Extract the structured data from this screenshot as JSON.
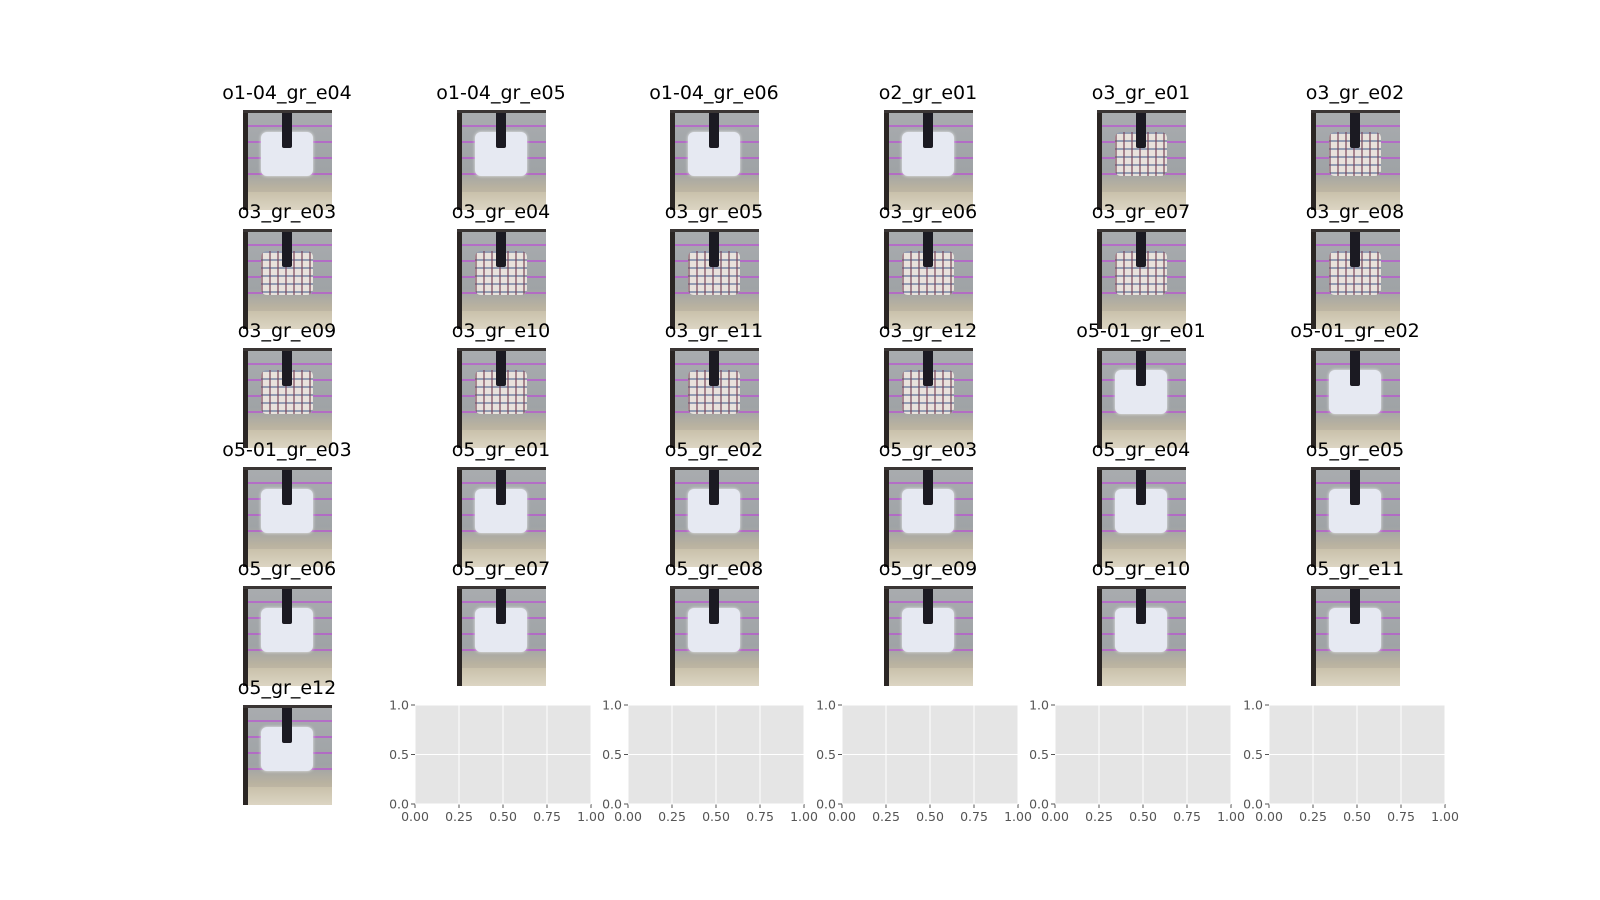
{
  "figure": {
    "panels": [
      {
        "title": "o1-04_gr_e04",
        "garment": "white"
      },
      {
        "title": "o1-04_gr_e05",
        "garment": "white"
      },
      {
        "title": "o1-04_gr_e06",
        "garment": "white"
      },
      {
        "title": "o2_gr_e01",
        "garment": "white"
      },
      {
        "title": "o3_gr_e01",
        "garment": "plaid"
      },
      {
        "title": "o3_gr_e02",
        "garment": "plaid"
      },
      {
        "title": "o3_gr_e03",
        "garment": "plaid"
      },
      {
        "title": "o3_gr_e04",
        "garment": "plaid"
      },
      {
        "title": "o3_gr_e05",
        "garment": "plaid"
      },
      {
        "title": "o3_gr_e06",
        "garment": "plaid"
      },
      {
        "title": "o3_gr_e07",
        "garment": "plaid"
      },
      {
        "title": "o3_gr_e08",
        "garment": "plaid"
      },
      {
        "title": "o3_gr_e09",
        "garment": "plaid"
      },
      {
        "title": "o3_gr_e10",
        "garment": "plaid"
      },
      {
        "title": "o3_gr_e11",
        "garment": "plaid"
      },
      {
        "title": "o3_gr_e12",
        "garment": "plaid"
      },
      {
        "title": "o5-01_gr_e01",
        "garment": "white"
      },
      {
        "title": "o5-01_gr_e02",
        "garment": "white"
      },
      {
        "title": "o5-01_gr_e03",
        "garment": "white"
      },
      {
        "title": "o5_gr_e01",
        "garment": "white"
      },
      {
        "title": "o5_gr_e02",
        "garment": "white"
      },
      {
        "title": "o5_gr_e03",
        "garment": "white"
      },
      {
        "title": "o5_gr_e04",
        "garment": "white"
      },
      {
        "title": "o5_gr_e05",
        "garment": "white"
      },
      {
        "title": "o5_gr_e06",
        "garment": "white"
      },
      {
        "title": "o5_gr_e07",
        "garment": "white"
      },
      {
        "title": "o5_gr_e08",
        "garment": "white"
      },
      {
        "title": "o5_gr_e09",
        "garment": "white"
      },
      {
        "title": "o5_gr_e10",
        "garment": "white"
      },
      {
        "title": "o5_gr_e11",
        "garment": "white"
      },
      {
        "title": "o5_gr_e12",
        "garment": "white"
      }
    ],
    "colors": {
      "axes_bg": "#e5e5e5",
      "grid": "#ffffff",
      "tick_text": "#555555",
      "tick_mark": "#555555"
    }
  },
  "chart_data": [
    {
      "type": "scatter",
      "title": "",
      "series": [],
      "xlim": [
        0,
        1
      ],
      "ylim": [
        0,
        1
      ],
      "xticks": [
        "0.00",
        "0.25",
        "0.50",
        "0.75",
        "1.00"
      ],
      "yticks": [
        "0.0",
        "0.5",
        "1.0"
      ],
      "grid": true
    },
    {
      "type": "scatter",
      "title": "",
      "series": [],
      "xlim": [
        0,
        1
      ],
      "ylim": [
        0,
        1
      ],
      "xticks": [
        "0.00",
        "0.25",
        "0.50",
        "0.75",
        "1.00"
      ],
      "yticks": [
        "0.0",
        "0.5",
        "1.0"
      ],
      "grid": true
    },
    {
      "type": "scatter",
      "title": "",
      "series": [],
      "xlim": [
        0,
        1
      ],
      "ylim": [
        0,
        1
      ],
      "xticks": [
        "0.00",
        "0.25",
        "0.50",
        "0.75",
        "1.00"
      ],
      "yticks": [
        "0.0",
        "0.5",
        "1.0"
      ],
      "grid": true
    },
    {
      "type": "scatter",
      "title": "",
      "series": [],
      "xlim": [
        0,
        1
      ],
      "ylim": [
        0,
        1
      ],
      "xticks": [
        "0.00",
        "0.25",
        "0.50",
        "0.75",
        "1.00"
      ],
      "yticks": [
        "0.0",
        "0.5",
        "1.0"
      ],
      "grid": true
    },
    {
      "type": "scatter",
      "title": "",
      "series": [],
      "xlim": [
        0,
        1
      ],
      "ylim": [
        0,
        1
      ],
      "xticks": [
        "0.00",
        "0.25",
        "0.50",
        "0.75",
        "1.00"
      ],
      "yticks": [
        "0.0",
        "0.5",
        "1.0"
      ],
      "grid": true
    }
  ]
}
